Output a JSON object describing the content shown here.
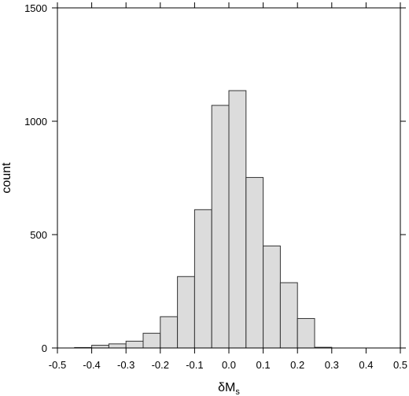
{
  "chart_data": {
    "type": "bar",
    "title": "",
    "xlabel": "δM",
    "xlabel_subscript": "s",
    "ylabel": "count",
    "xlim": [
      -0.5,
      0.5
    ],
    "ylim": [
      0,
      1500
    ],
    "xticks": [
      -0.5,
      -0.4,
      -0.3,
      -0.2,
      -0.1,
      0.0,
      0.1,
      0.2,
      0.3,
      0.4,
      0.5
    ],
    "xtick_labels": [
      "-0.5",
      "-0.4",
      "-0.3",
      "-0.2",
      "-0.1",
      "0.0",
      "0.1",
      "0.2",
      "0.3",
      "0.4",
      "0.5"
    ],
    "yticks": [
      0,
      500,
      1000,
      1500
    ],
    "ytick_labels": [
      "0",
      "500",
      "1000",
      "1500"
    ],
    "bin_width": 0.05,
    "bin_starts": [
      -0.45,
      -0.4,
      -0.35,
      -0.3,
      -0.25,
      -0.2,
      -0.15,
      -0.1,
      -0.05,
      0.0,
      0.05,
      0.1,
      0.15,
      0.2,
      0.25
    ],
    "values": [
      2,
      12,
      18,
      30,
      65,
      138,
      315,
      610,
      1070,
      1135,
      752,
      450,
      288,
      130,
      3
    ],
    "bar_fill": "#dcdcdc",
    "bar_stroke": "#333333",
    "grid": false
  }
}
